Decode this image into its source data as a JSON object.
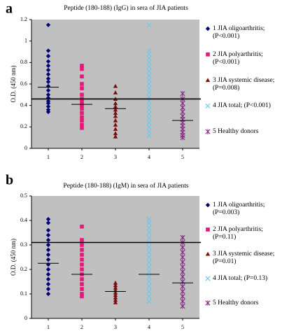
{
  "chart_data": [
    {
      "type": "scatter",
      "panel_label": "a",
      "title": "Peptide (180-188) (IgG) in sera of JIA patients",
      "y_label": "O.D. (450 nm)",
      "xlim": [
        0.5,
        5.5
      ],
      "xticks": [
        1,
        2,
        3,
        4,
        5
      ],
      "ylim": [
        0,
        1.2
      ],
      "yticks": [
        0,
        0.2,
        0.4,
        0.6,
        0.8,
        1,
        1.2
      ],
      "reference_line": 0.46,
      "mean_values": [
        0.57,
        0.41,
        0.37,
        0.46,
        0.26
      ],
      "series": [
        {
          "name": "1 JIA oligoarthritis; (P<0.001)",
          "color": "#00007a",
          "marker": "diamond",
          "x": 1,
          "values": [
            1.15,
            0.91,
            0.86,
            0.81,
            0.77,
            0.73,
            0.69,
            0.65,
            0.62,
            0.58,
            0.54,
            0.5,
            0.47,
            0.44,
            0.42,
            0.39,
            0.36,
            0.34
          ]
        },
        {
          "name": "2 JIA polyarthritis; (P<0.001)",
          "color": "#e8177a",
          "marker": "square",
          "x": 2,
          "values": [
            0.77,
            0.74,
            0.67,
            0.6,
            0.56,
            0.5,
            0.46,
            0.43,
            0.4,
            0.37,
            0.33,
            0.29,
            0.26,
            0.22,
            0.19
          ]
        },
        {
          "name": "3 JIA systemic disease; (P=0.008)",
          "color": "#7a0f0f",
          "marker": "triangle",
          "x": 3,
          "values": [
            0.58,
            0.52,
            0.46,
            0.42,
            0.39,
            0.36,
            0.33,
            0.3,
            0.26,
            0.22,
            0.18,
            0.14,
            0.11
          ]
        },
        {
          "name": "4 JIA total; (P<0.001)",
          "color": "#6cc6f0",
          "marker": "x",
          "x": 4,
          "values": [
            1.15,
            0.91,
            0.88,
            0.84,
            0.8,
            0.76,
            0.72,
            0.68,
            0.64,
            0.6,
            0.56,
            0.52,
            0.48,
            0.44,
            0.4,
            0.36,
            0.32,
            0.28,
            0.24,
            0.2,
            0.16,
            0.12
          ]
        },
        {
          "name": "5 Healthy donors",
          "color": "#8a2c86",
          "marker": "star",
          "x": 5,
          "values": [
            0.51,
            0.46,
            0.42,
            0.38,
            0.34,
            0.3,
            0.27,
            0.24,
            0.21,
            0.18,
            0.15,
            0.12,
            0.1
          ]
        }
      ]
    },
    {
      "type": "scatter",
      "panel_label": "b",
      "title": "Peptide (180-188) (IgM) in sera of JIA patients",
      "y_label": "O.D. (450 nm)",
      "xlim": [
        0.5,
        5.5
      ],
      "xticks": [
        1,
        2,
        3,
        4,
        5
      ],
      "ylim": [
        0,
        0.5
      ],
      "yticks": [
        0,
        0.1,
        0.2,
        0.3,
        0.4,
        0.5
      ],
      "reference_line": 0.31,
      "mean_values": [
        0.225,
        0.18,
        0.11,
        0.18,
        0.145
      ],
      "series": [
        {
          "name": "1 JIA oligoarthritis; (P=0.003)",
          "color": "#00007a",
          "marker": "diamond",
          "x": 1,
          "values": [
            0.405,
            0.39,
            0.36,
            0.34,
            0.32,
            0.3,
            0.28,
            0.26,
            0.24,
            0.22,
            0.2,
            0.18,
            0.16,
            0.14,
            0.12,
            0.1
          ]
        },
        {
          "name": "2 JIA polyarthritis; (P=0.11)",
          "color": "#e8177a",
          "marker": "square",
          "x": 2,
          "values": [
            0.375,
            0.32,
            0.3,
            0.28,
            0.26,
            0.24,
            0.22,
            0.2,
            0.18,
            0.16,
            0.14,
            0.12,
            0.1,
            0.09
          ]
        },
        {
          "name": "3 JIA systemic disease; (P=0.01)",
          "color": "#7a0f0f",
          "marker": "triangle",
          "x": 3,
          "values": [
            0.145,
            0.135,
            0.125,
            0.115,
            0.105,
            0.095,
            0.085,
            0.075,
            0.065
          ]
        },
        {
          "name": "4 JIA total; (P=0.13)",
          "color": "#6cc6f0",
          "marker": "x",
          "x": 4,
          "values": [
            0.405,
            0.39,
            0.37,
            0.35,
            0.33,
            0.31,
            0.29,
            0.27,
            0.25,
            0.23,
            0.21,
            0.19,
            0.17,
            0.15,
            0.13,
            0.11,
            0.09,
            0.07
          ]
        },
        {
          "name": "5 Healthy donors",
          "color": "#8a2c86",
          "marker": "star",
          "x": 5,
          "values": [
            0.33,
            0.31,
            0.29,
            0.27,
            0.25,
            0.23,
            0.21,
            0.19,
            0.17,
            0.15,
            0.13,
            0.11,
            0.09,
            0.07,
            0.05
          ]
        }
      ]
    }
  ]
}
